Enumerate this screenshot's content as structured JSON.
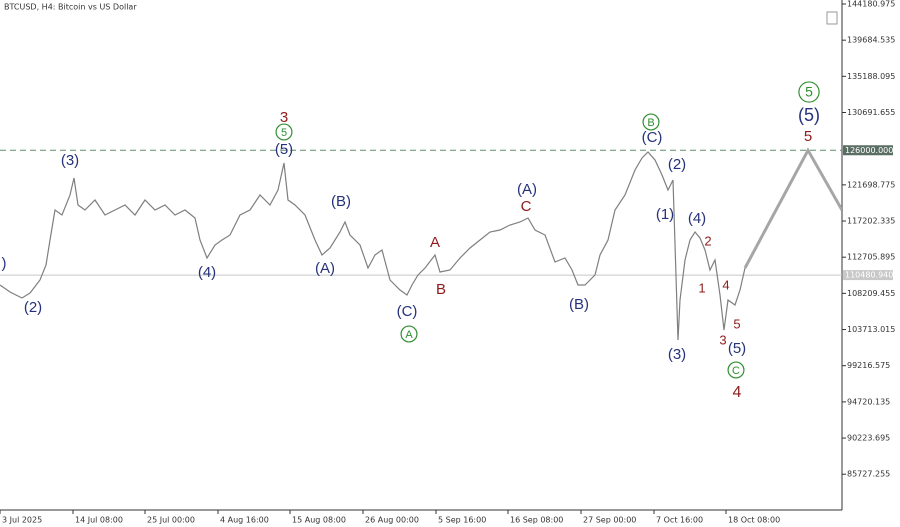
{
  "chart_data": {
    "type": "line",
    "title": "BTCUSD, H4:  Bitcoin vs US Dollar",
    "color": "#7f7f7f",
    "x": [
      0,
      10,
      22,
      30,
      40,
      46,
      50,
      55,
      62,
      70,
      74,
      78,
      85,
      95,
      105,
      115,
      125,
      135,
      145,
      155,
      165,
      175,
      185,
      195,
      200,
      207,
      215,
      222,
      230,
      240,
      250,
      260,
      270,
      278,
      284,
      288,
      295,
      305,
      315,
      322,
      330,
      340,
      345,
      350,
      360,
      368,
      375,
      382,
      390,
      400,
      407,
      412,
      418,
      425,
      435,
      440,
      450,
      460,
      470,
      480,
      490,
      500,
      510,
      520,
      528,
      535,
      545,
      555,
      565,
      572,
      578,
      585,
      595,
      600,
      608,
      615,
      625,
      635,
      642,
      648,
      655,
      662,
      668,
      673,
      678,
      680,
      685,
      690,
      695,
      700,
      705,
      710,
      715,
      720,
      724,
      728,
      735,
      740,
      745
    ],
    "values": [
      109250,
      108380,
      107630,
      108260,
      109870,
      111740,
      114840,
      118570,
      117950,
      120440,
      122550,
      119190,
      118570,
      119820,
      117950,
      118570,
      119190,
      117950,
      119820,
      118570,
      119190,
      117950,
      118570,
      117580,
      114840,
      112610,
      114220,
      114840,
      115470,
      117950,
      118570,
      120440,
      119190,
      121060,
      124420,
      119820,
      119190,
      117950,
      114840,
      112980,
      113850,
      115840,
      117080,
      115470,
      114220,
      111360,
      112980,
      113600,
      109870,
      108630,
      108010,
      109250,
      110490,
      111360,
      112980,
      110870,
      111110,
      112610,
      113850,
      114840,
      115840,
      116090,
      116710,
      117080,
      117580,
      116090,
      115470,
      112110,
      112610,
      111110,
      109250,
      109250,
      110490,
      112980,
      114840,
      118570,
      120440,
      123550,
      125040,
      125780,
      124790,
      122920,
      121060,
      122300,
      102410,
      107390,
      112360,
      114840,
      115840,
      115090,
      113600,
      111110,
      112360,
      108010,
      103660,
      107390,
      106760,
      108630,
      111360
    ],
    "projection": {
      "color": "#a6a6a6",
      "x": [
        745,
        808,
        842
      ],
      "values": [
        111360,
        126000,
        118570
      ]
    },
    "xlim": [
      0,
      842
    ],
    "xticks": [
      {
        "value": 0,
        "label": "3 Jul 2025"
      },
      {
        "value": 73,
        "label": "14 Jul 08:00"
      },
      {
        "value": 145,
        "label": "25 Jul 00:00"
      },
      {
        "value": 218,
        "label": "4 Aug 16:00"
      },
      {
        "value": 290,
        "label": "15 Aug 08:00"
      },
      {
        "value": 363,
        "label": "26 Aug 00:00"
      },
      {
        "value": 436,
        "label": "5 Sep 16:00"
      },
      {
        "value": 508,
        "label": "16 Sep 08:00"
      },
      {
        "value": 581,
        "label": "27 Sep 00:00"
      },
      {
        "value": 654,
        "label": "7 Oct 16:00"
      },
      {
        "value": 726,
        "label": "18 Oct 08:00"
      }
    ],
    "ylim": [
      81280,
      144678
    ],
    "yticks": [
      144180.975,
      139684.535,
      135188.095,
      130691.655,
      121698.775,
      117202.335,
      112705.895,
      108209.455,
      103713.015,
      99216.575,
      94720.135,
      90223.695,
      85727.255
    ],
    "levels": [
      {
        "value": 126000,
        "label": "126000.000",
        "color": "#5f8f6f",
        "dashed": true,
        "box": "#5a6e62"
      },
      {
        "value": 110480.94,
        "label": "110480.940",
        "color": "#c8c8c8",
        "dashed": false,
        "box": "#c8c8c8"
      }
    ],
    "annotations": [
      {
        "text": ")",
        "color": "#25317a"
      },
      {
        "text": "(2)",
        "color": "#25317a"
      },
      {
        "text": "(3)",
        "color": "#25317a"
      },
      {
        "text": "(4)",
        "color": "#25317a"
      },
      {
        "text": "(5)",
        "color": "#25317a"
      },
      {
        "text": "(B)",
        "color": "#25317a"
      },
      {
        "text": "(A)",
        "color": "#25317a"
      },
      {
        "text": "(C)",
        "color": "#25317a"
      },
      {
        "text": "(A)",
        "color": "#25317a"
      },
      {
        "text": "(B)",
        "color": "#25317a"
      },
      {
        "text": "(C)",
        "color": "#25317a"
      },
      {
        "text": "(2)",
        "color": "#25317a"
      },
      {
        "text": "(1)",
        "color": "#25317a"
      },
      {
        "text": "(4)",
        "color": "#25317a"
      },
      {
        "text": "(3)",
        "color": "#25317a"
      },
      {
        "text": "(5)",
        "color": "#25317a"
      },
      {
        "text": "(5)",
        "color": "#25317a"
      },
      {
        "text": "3",
        "color": "#8e1b1b"
      },
      {
        "text": "A",
        "color": "#8e1b1b"
      },
      {
        "text": "B",
        "color": "#8e1b1b"
      },
      {
        "text": "C",
        "color": "#8e1b1b"
      },
      {
        "text": "2",
        "color": "#8e1b1b"
      },
      {
        "text": "1",
        "color": "#8e1b1b"
      },
      {
        "text": "4",
        "color": "#8e1b1b"
      },
      {
        "text": "5",
        "color": "#8e1b1b"
      },
      {
        "text": "3",
        "color": "#8e1b1b"
      },
      {
        "text": "4",
        "color": "#8e1b1b"
      },
      {
        "text": "5",
        "color": "#8e1b1b"
      },
      {
        "text": "5",
        "color": "#2f8f2f",
        "circled": true
      },
      {
        "text": "A",
        "color": "#2f8f2f",
        "circled": true
      },
      {
        "text": "B",
        "color": "#2f8f2f",
        "circled": true
      },
      {
        "text": "C",
        "color": "#2f8f2f",
        "circled": true
      },
      {
        "text": "5",
        "color": "#2f8f2f",
        "circled": true
      }
    ]
  }
}
